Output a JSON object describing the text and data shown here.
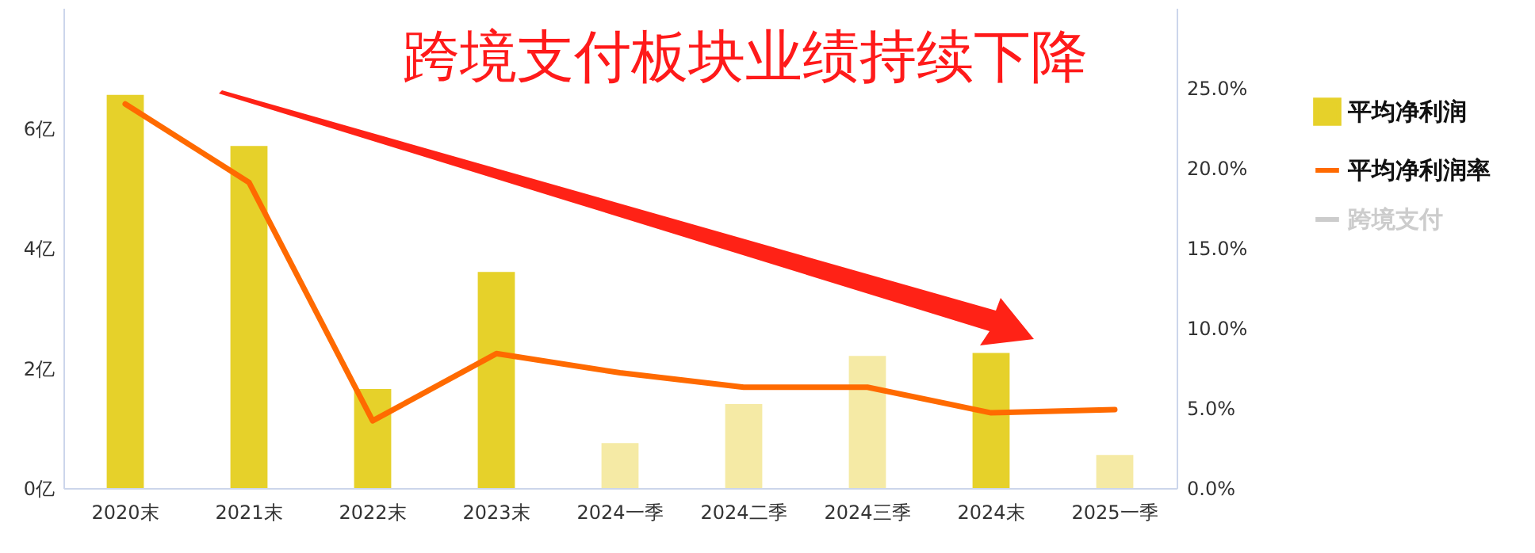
{
  "chart_data": {
    "type": "bar",
    "title": "跨境支付板块业绩持续下降",
    "categories": [
      "2020末",
      "2021末",
      "2022末",
      "2023末",
      "2024一季",
      "2024二季",
      "2024三季",
      "2024末",
      "2025一季"
    ],
    "series": [
      {
        "name": "平均净利润",
        "color": "#e6d12a",
        "colors": [
          "#e6d12a",
          "#e6d12a",
          "#e6d12a",
          "#e6d12a",
          "#f5eaa5",
          "#f5eaa5",
          "#f5eaa5",
          "#e6d12a",
          "#f5eaa5"
        ],
        "values": [
          6.55,
          5.7,
          1.65,
          3.6,
          0.75,
          1.4,
          2.2,
          2.25,
          0.55
        ]
      },
      {
        "name": "平均净利润率",
        "type": "line",
        "axis": "y2",
        "color": "#ff6a00",
        "values": [
          24.0,
          19.1,
          4.2,
          8.4,
          7.2,
          6.3,
          6.3,
          4.7,
          4.9
        ]
      },
      {
        "name": "跨境支付",
        "type": "line",
        "color": "#cccccc",
        "values": [
          null,
          null,
          null,
          null,
          null,
          null,
          null,
          null,
          null
        ]
      }
    ],
    "ylim": [
      0,
      8
    ],
    "yticks": [
      {
        "value": 0,
        "label": "0亿"
      },
      {
        "value": 2,
        "label": "2亿"
      },
      {
        "value": 4,
        "label": "4亿"
      },
      {
        "value": 6,
        "label": "6亿"
      }
    ],
    "y2lim": [
      0,
      30
    ],
    "y2ticks": [
      {
        "value": 0,
        "label": "0.0%"
      },
      {
        "value": 5,
        "label": "5.0%"
      },
      {
        "value": 10,
        "label": "10.0%"
      },
      {
        "value": 15,
        "label": "15.0%"
      },
      {
        "value": 20,
        "label": "20.0%"
      },
      {
        "value": 25,
        "label": "25.0%"
      }
    ],
    "grid": false,
    "legend": "right",
    "marker": "none",
    "line_style": "solid"
  }
}
